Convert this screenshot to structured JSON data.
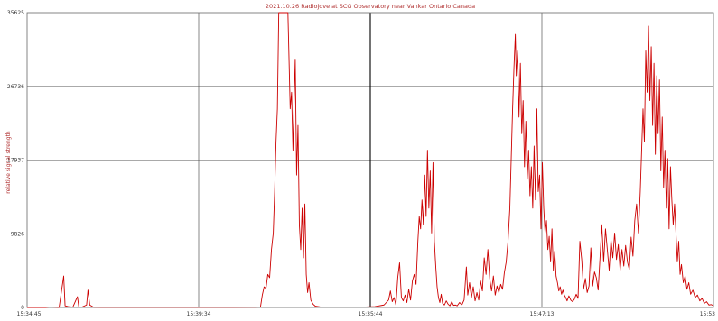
{
  "chart_data": {
    "type": "line",
    "title": "2021.10.26 Radiojove at SCG Observatory near Vankar Ontario Canada",
    "ylabel": "relative signal strength",
    "footer": "",
    "colors": {
      "line": "#cc0000",
      "major_grid": "#000000",
      "minor_grid": "#555555",
      "background": "#ffffff"
    },
    "grid": true,
    "y_ticks": [
      "0",
      "9826",
      "17937",
      "26736",
      "35625"
    ],
    "ylim": [
      0,
      35625
    ],
    "x_ticks": [
      "15:34:45",
      "15:39:34",
      "15:35:44",
      "15:47:13",
      "15:53"
    ],
    "series": [
      {
        "points": [
          [
            0,
            0
          ],
          [
            4,
            0
          ],
          [
            5,
            60
          ],
          [
            6,
            40
          ],
          [
            7,
            5
          ],
          [
            8,
            3800
          ],
          [
            8.3,
            200
          ],
          [
            9,
            100
          ],
          [
            10,
            50
          ],
          [
            11,
            1300
          ],
          [
            11.3,
            80
          ],
          [
            12,
            50
          ],
          [
            13,
            300
          ],
          [
            13.3,
            2100
          ],
          [
            13.7,
            300
          ],
          [
            14.5,
            40
          ],
          [
            16,
            20
          ],
          [
            20,
            20
          ],
          [
            25,
            20
          ],
          [
            30,
            20
          ],
          [
            35,
            20
          ],
          [
            40,
            20
          ],
          [
            45,
            25
          ],
          [
            50,
            30
          ],
          [
            51,
            60
          ],
          [
            51.4,
            1500
          ],
          [
            51.8,
            2500
          ],
          [
            52.2,
            2300
          ],
          [
            52.6,
            4000
          ],
          [
            53,
            3600
          ],
          [
            53.4,
            7000
          ],
          [
            53.8,
            9000
          ],
          [
            54.1,
            14000
          ],
          [
            54.4,
            20000
          ],
          [
            54.7,
            24000
          ],
          [
            55,
            35625
          ],
          [
            55.4,
            35625
          ],
          [
            55.8,
            35625
          ],
          [
            56.2,
            35625
          ],
          [
            56.6,
            35625
          ],
          [
            57,
            35625
          ],
          [
            57.2,
            31000
          ],
          [
            57.5,
            24000
          ],
          [
            57.8,
            26000
          ],
          [
            58.1,
            19000
          ],
          [
            58.4,
            26000
          ],
          [
            58.6,
            30000
          ],
          [
            58.9,
            16000
          ],
          [
            59.2,
            22000
          ],
          [
            59.5,
            10000
          ],
          [
            59.8,
            7000
          ],
          [
            60.1,
            12000
          ],
          [
            60.4,
            6000
          ],
          [
            60.7,
            12500
          ],
          [
            61.0,
            4000
          ],
          [
            61.3,
            1800
          ],
          [
            61.6,
            3000
          ],
          [
            62,
            900
          ],
          [
            62.5,
            400
          ],
          [
            63,
            150
          ],
          [
            64,
            80
          ],
          [
            66,
            60
          ],
          [
            68,
            50
          ],
          [
            70,
            50
          ],
          [
            72,
            50
          ],
          [
            74,
            60
          ],
          [
            76,
            100
          ],
          [
            78,
            300
          ],
          [
            79,
            900
          ],
          [
            79.4,
            2000
          ],
          [
            79.8,
            700
          ],
          [
            80.2,
            1200
          ],
          [
            80.6,
            300
          ],
          [
            81,
            3600
          ],
          [
            81.4,
            5400
          ],
          [
            81.8,
            1200
          ],
          [
            82.2,
            800
          ],
          [
            82.6,
            1500
          ],
          [
            83,
            600
          ],
          [
            83.4,
            2200
          ],
          [
            83.8,
            900
          ],
          [
            84.2,
            3200
          ],
          [
            84.6,
            4000
          ],
          [
            85,
            2800
          ],
          [
            85.4,
            8000
          ],
          [
            85.7,
            11000
          ],
          [
            86,
            9500
          ],
          [
            86.3,
            13000
          ],
          [
            86.6,
            10000
          ],
          [
            86.9,
            16000
          ],
          [
            87.2,
            11000
          ],
          [
            87.5,
            19000
          ],
          [
            87.8,
            12000
          ],
          [
            88.1,
            16500
          ],
          [
            88.4,
            9000
          ],
          [
            88.7,
            17500
          ],
          [
            89,
            8000
          ],
          [
            89.3,
            5000
          ],
          [
            89.6,
            2500
          ],
          [
            89.9,
            1200
          ],
          [
            90.2,
            600
          ],
          [
            90.5,
            1600
          ],
          [
            90.8,
            500
          ],
          [
            91.2,
            300
          ],
          [
            91.6,
            800
          ],
          [
            92,
            400
          ],
          [
            92.4,
            200
          ],
          [
            92.8,
            700
          ],
          [
            93.2,
            250
          ],
          [
            93.6,
            300
          ],
          [
            94,
            200
          ],
          [
            94.5,
            600
          ],
          [
            95,
            300
          ],
          [
            95.5,
            900
          ],
          [
            96,
            4900
          ],
          [
            96.3,
            1500
          ],
          [
            96.7,
            3000
          ],
          [
            97.1,
            1200
          ],
          [
            97.5,
            2500
          ],
          [
            97.9,
            800
          ],
          [
            98.3,
            1800
          ],
          [
            98.7,
            900
          ],
          [
            99.1,
            3200
          ],
          [
            99.5,
            2000
          ],
          [
            99.9,
            6000
          ],
          [
            100.3,
            4000
          ],
          [
            100.7,
            7000
          ],
          [
            101.1,
            3500
          ],
          [
            101.5,
            2000
          ],
          [
            101.9,
            3800
          ],
          [
            102.3,
            1500
          ],
          [
            102.7,
            2600
          ],
          [
            103.1,
            1800
          ],
          [
            103.5,
            2800
          ],
          [
            103.9,
            2200
          ],
          [
            104.3,
            4200
          ],
          [
            104.7,
            5500
          ],
          [
            105.1,
            8000
          ],
          [
            105.5,
            12000
          ],
          [
            105.8,
            18000
          ],
          [
            106.1,
            24000
          ],
          [
            106.4,
            29000
          ],
          [
            106.7,
            33000
          ],
          [
            106.9,
            28000
          ],
          [
            107.2,
            31000
          ],
          [
            107.5,
            23000
          ],
          [
            107.8,
            29500
          ],
          [
            108.1,
            21000
          ],
          [
            108.4,
            25000
          ],
          [
            108.7,
            17000
          ],
          [
            109,
            22500
          ],
          [
            109.3,
            15500
          ],
          [
            109.6,
            19000
          ],
          [
            109.9,
            13500
          ],
          [
            110.2,
            17000
          ],
          [
            110.5,
            12000
          ],
          [
            110.8,
            19500
          ],
          [
            111.1,
            13000
          ],
          [
            111.4,
            24000
          ],
          [
            111.7,
            14000
          ],
          [
            112,
            16000
          ],
          [
            112.3,
            9500
          ],
          [
            112.6,
            17500
          ],
          [
            112.9,
            12000
          ],
          [
            113.2,
            9000
          ],
          [
            113.5,
            10500
          ],
          [
            113.8,
            7000
          ],
          [
            114.1,
            8600
          ],
          [
            114.4,
            5500
          ],
          [
            114.7,
            9500
          ],
          [
            115,
            4500
          ],
          [
            115.3,
            6800
          ],
          [
            115.6,
            3800
          ],
          [
            115.9,
            3000
          ],
          [
            116.2,
            2000
          ],
          [
            116.5,
            2500
          ],
          [
            116.8,
            1600
          ],
          [
            117.1,
            2100
          ],
          [
            117.4,
            1500
          ],
          [
            117.7,
            1200
          ],
          [
            118,
            800
          ],
          [
            118.4,
            1400
          ],
          [
            118.8,
            900
          ],
          [
            119.2,
            700
          ],
          [
            119.6,
            1000
          ],
          [
            120,
            1600
          ],
          [
            120.4,
            1100
          ],
          [
            120.8,
            8000
          ],
          [
            121.2,
            5800
          ],
          [
            121.6,
            2200
          ],
          [
            122,
            3500
          ],
          [
            122.4,
            1800
          ],
          [
            122.8,
            2600
          ],
          [
            123.2,
            7200
          ],
          [
            123.6,
            2600
          ],
          [
            124,
            4300
          ],
          [
            124.4,
            3600
          ],
          [
            124.8,
            2100
          ],
          [
            125.2,
            6000
          ],
          [
            125.6,
            10000
          ],
          [
            126,
            5500
          ],
          [
            126.4,
            9500
          ],
          [
            126.8,
            7000
          ],
          [
            127.2,
            4500
          ],
          [
            127.6,
            8200
          ],
          [
            128,
            6000
          ],
          [
            128.4,
            9000
          ],
          [
            128.8,
            5800
          ],
          [
            129.2,
            7600
          ],
          [
            129.6,
            4500
          ],
          [
            130,
            7000
          ],
          [
            130.4,
            5000
          ],
          [
            130.8,
            7500
          ],
          [
            131.2,
            5500
          ],
          [
            131.6,
            4600
          ],
          [
            132,
            8500
          ],
          [
            132.4,
            6200
          ],
          [
            132.8,
            10500
          ],
          [
            133.2,
            12500
          ],
          [
            133.6,
            9000
          ],
          [
            134,
            14000
          ],
          [
            134.3,
            19000
          ],
          [
            134.6,
            24000
          ],
          [
            134.9,
            20000
          ],
          [
            135.2,
            31000
          ],
          [
            135.5,
            26000
          ],
          [
            135.8,
            34000
          ],
          [
            136.1,
            25000
          ],
          [
            136.4,
            31500
          ],
          [
            136.7,
            22000
          ],
          [
            137,
            29500
          ],
          [
            137.3,
            18500
          ],
          [
            137.6,
            28000
          ],
          [
            137.9,
            21000
          ],
          [
            138.2,
            27500
          ],
          [
            138.5,
            16500
          ],
          [
            138.8,
            23000
          ],
          [
            139.1,
            14500
          ],
          [
            139.4,
            19000
          ],
          [
            139.7,
            12000
          ],
          [
            140,
            18000
          ],
          [
            140.3,
            9500
          ],
          [
            140.6,
            17000
          ],
          [
            140.9,
            13000
          ],
          [
            141.2,
            10000
          ],
          [
            141.5,
            12500
          ],
          [
            141.8,
            9000
          ],
          [
            142.1,
            5500
          ],
          [
            142.4,
            8000
          ],
          [
            142.7,
            4000
          ],
          [
            143,
            5200
          ],
          [
            143.4,
            3000
          ],
          [
            143.8,
            3800
          ],
          [
            144.2,
            2200
          ],
          [
            144.6,
            3000
          ],
          [
            145,
            1600
          ],
          [
            145.5,
            2100
          ],
          [
            146,
            1200
          ],
          [
            146.5,
            1500
          ],
          [
            147,
            800
          ],
          [
            147.5,
            1100
          ],
          [
            148,
            500
          ],
          [
            148.5,
            700
          ],
          [
            149,
            300
          ],
          [
            149.5,
            350
          ],
          [
            150,
            200
          ]
        ]
      }
    ]
  }
}
